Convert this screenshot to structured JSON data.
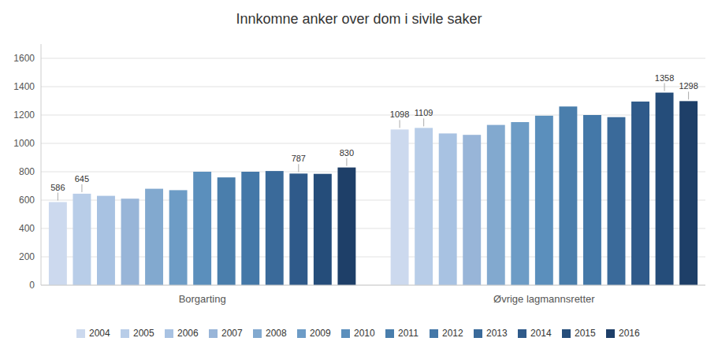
{
  "chart_data": {
    "type": "bar",
    "title": "Innkomne anker over dom i sivile saker",
    "categories": [
      "Borgarting",
      "Øvrige lagmannsretter"
    ],
    "series": [
      {
        "name": "2004",
        "color": "#ccd9ee",
        "values": [
          586,
          1098
        ],
        "value_labels": [
          "586",
          "1098"
        ]
      },
      {
        "name": "2005",
        "color": "#b8cde8",
        "values": [
          645,
          1109
        ],
        "value_labels": [
          "645",
          "1109"
        ]
      },
      {
        "name": "2006",
        "color": "#a8c2e2",
        "values": [
          630,
          1070
        ]
      },
      {
        "name": "2007",
        "color": "#98b5d8",
        "values": [
          610,
          1060
        ]
      },
      {
        "name": "2008",
        "color": "#82a9cf",
        "values": [
          680,
          1130
        ]
      },
      {
        "name": "2009",
        "color": "#6d9cc6",
        "values": [
          670,
          1150
        ]
      },
      {
        "name": "2010",
        "color": "#5b8fbc",
        "values": [
          800,
          1195
        ]
      },
      {
        "name": "2011",
        "color": "#4a7eac",
        "values": [
          760,
          1260
        ]
      },
      {
        "name": "2012",
        "color": "#4478a8",
        "values": [
          800,
          1200
        ]
      },
      {
        "name": "2013",
        "color": "#3a6a9a",
        "values": [
          805,
          1185
        ]
      },
      {
        "name": "2014",
        "color": "#2f5a8a",
        "values": [
          787,
          1295
        ],
        "value_labels": [
          "787",
          null
        ]
      },
      {
        "name": "2015",
        "color": "#254d7a",
        "values": [
          785,
          1358
        ],
        "value_labels": [
          null,
          "1358"
        ]
      },
      {
        "name": "2016",
        "color": "#1e3f68",
        "values": [
          830,
          1298
        ],
        "value_labels": [
          "830",
          "1298"
        ]
      }
    ],
    "ylim": [
      0,
      1700
    ],
    "yticks": [
      0,
      200,
      400,
      600,
      800,
      1000,
      1200,
      1400,
      1600
    ],
    "grid": true,
    "legend": "bottom"
  }
}
